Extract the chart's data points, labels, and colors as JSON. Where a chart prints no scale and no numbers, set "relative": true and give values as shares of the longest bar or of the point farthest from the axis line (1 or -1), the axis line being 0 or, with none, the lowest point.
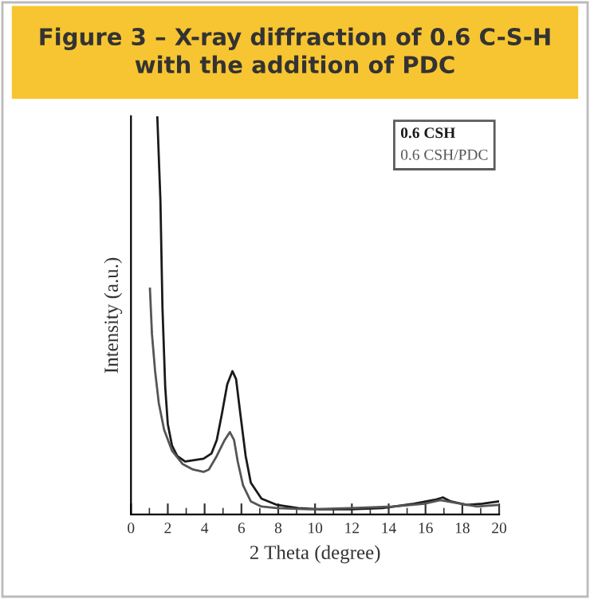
{
  "chart_data": {
    "type": "line",
    "title": "Figure 3 – X-ray diffraction of 0.6 C-S-H\nwith the addition of PDC",
    "xlabel": "2 Theta (degree)",
    "ylabel": "Intensity (a.u.)",
    "relative": true,
    "xlim": [
      0,
      20
    ],
    "xticks": [
      0,
      2,
      4,
      6,
      8,
      10,
      12,
      14,
      16,
      18,
      20
    ],
    "tick_labels": "x",
    "legend": "top right",
    "grid": false,
    "marker": "none",
    "line_style": "solid",
    "series": [
      {
        "name": "0.6 CSH",
        "color": "#1a1a1a",
        "x": [
          1.43,
          1.6,
          1.71,
          1.86,
          2.0,
          2.23,
          2.51,
          2.94,
          3.37,
          3.94,
          4.37,
          4.66,
          4.94,
          5.23,
          5.51,
          5.71,
          5.94,
          6.23,
          6.51,
          7.09,
          7.94,
          9.09,
          10.23,
          11.94,
          13.66,
          15.37,
          16.51,
          16.94,
          17.37,
          18.23,
          19.09,
          19.94
        ],
        "values": [
          1.0,
          0.787,
          0.52,
          0.32,
          0.227,
          0.173,
          0.147,
          0.133,
          0.136,
          0.14,
          0.153,
          0.187,
          0.253,
          0.327,
          0.36,
          0.34,
          0.253,
          0.147,
          0.08,
          0.04,
          0.024,
          0.016,
          0.013,
          0.013,
          0.016,
          0.027,
          0.037,
          0.043,
          0.033,
          0.024,
          0.027,
          0.033
        ]
      },
      {
        "name": "0.6 CSH/PDC",
        "color": "#555555",
        "x": [
          1.03,
          1.14,
          1.31,
          1.51,
          1.8,
          2.23,
          2.8,
          3.37,
          3.94,
          4.23,
          4.66,
          5.09,
          5.37,
          5.6,
          5.8,
          6.09,
          6.51,
          7.09,
          7.94,
          9.66,
          11.94,
          14.23,
          15.94,
          16.8,
          17.66,
          18.8,
          19.94
        ],
        "values": [
          0.567,
          0.453,
          0.36,
          0.28,
          0.213,
          0.16,
          0.127,
          0.113,
          0.107,
          0.113,
          0.147,
          0.187,
          0.207,
          0.187,
          0.133,
          0.073,
          0.033,
          0.02,
          0.016,
          0.013,
          0.016,
          0.02,
          0.027,
          0.036,
          0.029,
          0.02,
          0.024
        ]
      }
    ]
  }
}
